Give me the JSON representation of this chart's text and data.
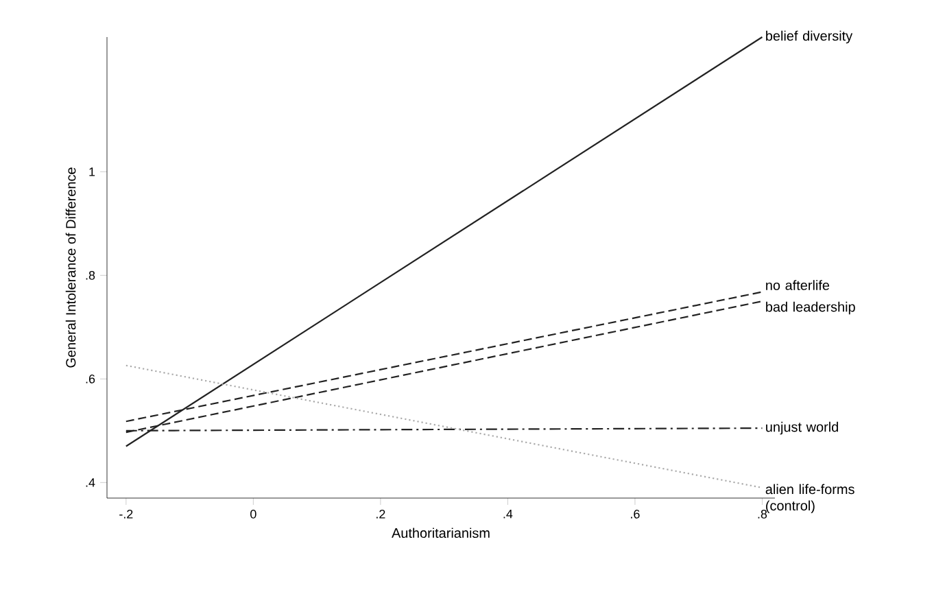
{
  "chart_data": {
    "type": "line",
    "xlabel": "Authoritarianism",
    "ylabel": "General Intolerance of Difference",
    "x": [
      -0.2,
      0.8
    ],
    "series": [
      {
        "name": "belief diversity",
        "color": "#222222",
        "line_style": "solid",
        "values": [
          0.47,
          1.26
        ]
      },
      {
        "name": "no afterlife",
        "color": "#222222",
        "line_style": "dashed",
        "values": [
          0.518,
          0.768
        ]
      },
      {
        "name": "bad leadership",
        "color": "#222222",
        "line_style": "dashed",
        "values": [
          0.497,
          0.75
        ]
      },
      {
        "name": "unjust world",
        "color": "#222222",
        "line_style": "dashdot",
        "values": [
          0.5,
          0.505
        ]
      },
      {
        "name": "alien life-forms (control)",
        "color": "#aaaaaa",
        "line_style": "dotted",
        "values": [
          0.626,
          0.39
        ]
      }
    ],
    "xlim": [
      -0.23,
      0.82
    ],
    "ylim": [
      0.37,
      1.26
    ],
    "xticks": [
      {
        "value": -0.2,
        "label": "-.2"
      },
      0,
      {
        "value": 0.2,
        "label": ".2"
      },
      {
        "value": 0.4,
        "label": ".4"
      },
      {
        "value": 0.6,
        "label": ".6"
      },
      {
        "value": 0.8,
        "label": ".8"
      }
    ],
    "yticks": [
      {
        "value": 0.4,
        "label": ".4"
      },
      {
        "value": 0.6,
        "label": ".6"
      },
      {
        "value": 0.8,
        "label": ".8"
      },
      1
    ],
    "grid": false,
    "legend": false,
    "marker": "none"
  }
}
